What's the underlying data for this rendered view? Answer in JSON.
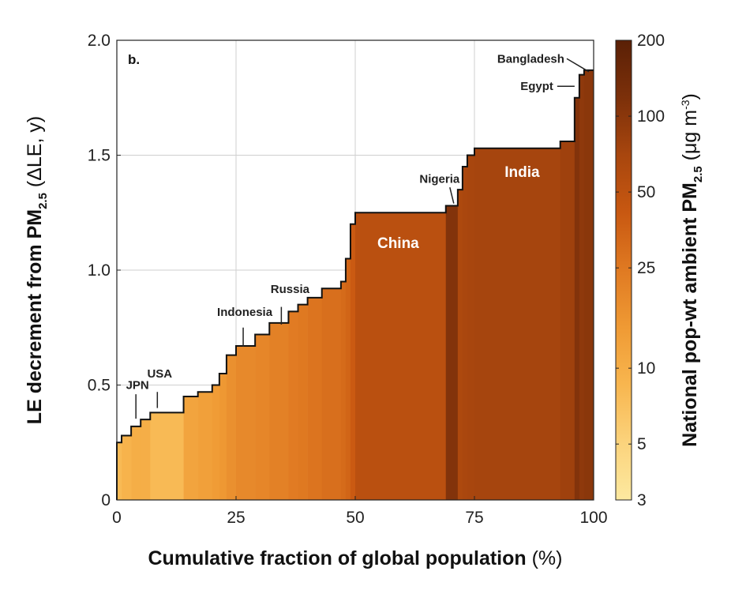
{
  "chart_data": {
    "type": "area",
    "panel_label": "b.",
    "xlabel_main": "Cumulative fraction of global population",
    "xlabel_unit": "(%)",
    "ylabel_main": "LE decrement from PM",
    "ylabel_sub": "2.5",
    "ylabel_unit": "(ΔLE, y)",
    "colorbar_label_main": "National pop-wt ambient PM",
    "colorbar_label_sub": "2.5",
    "colorbar_label_unit_pre": "(μg m",
    "colorbar_label_unit_sup": "-3",
    "colorbar_label_unit_post": ")",
    "xlim": [
      0,
      100
    ],
    "ylim": [
      0,
      2.0
    ],
    "x_ticks": [
      0,
      25,
      50,
      75,
      100
    ],
    "x_tick_labels": [
      "0",
      "25",
      "50",
      "75",
      "100"
    ],
    "y_ticks": [
      0,
      0.5,
      1.0,
      1.5,
      2.0
    ],
    "y_tick_labels": [
      "0",
      "0.5",
      "1.0",
      "1.5",
      "2.0"
    ],
    "grid": true,
    "colorbar": {
      "scale": "log",
      "range": [
        3,
        200
      ],
      "ticks": [
        3,
        5,
        10,
        25,
        50,
        100,
        200
      ],
      "tick_labels": [
        "3",
        "5",
        "10",
        "25",
        "50",
        "100",
        "200"
      ],
      "colors": [
        "#fde9a0",
        "#fbd37c",
        "#f8b64f",
        "#ef9a34",
        "#e07a22",
        "#c85811",
        "#a8460e",
        "#7c300a",
        "#5a2006"
      ]
    },
    "segments": [
      {
        "x0": 0,
        "x1": 1,
        "y": 0.25,
        "pm": 8
      },
      {
        "x0": 1,
        "x1": 3,
        "y": 0.28,
        "pm": 9
      },
      {
        "x0": 3,
        "x1": 5,
        "y": 0.32,
        "pm": 10
      },
      {
        "x0": 5,
        "x1": 7,
        "y": 0.35,
        "pm": 10
      },
      {
        "x0": 7,
        "x1": 14,
        "y": 0.38,
        "pm": 8
      },
      {
        "x0": 14,
        "x1": 17,
        "y": 0.45,
        "pm": 12
      },
      {
        "x0": 17,
        "x1": 20,
        "y": 0.47,
        "pm": 13
      },
      {
        "x0": 20,
        "x1": 21.5,
        "y": 0.5,
        "pm": 14
      },
      {
        "x0": 21.5,
        "x1": 23,
        "y": 0.55,
        "pm": 15
      },
      {
        "x0": 23,
        "x1": 25,
        "y": 0.63,
        "pm": 17
      },
      {
        "x0": 25,
        "x1": 29,
        "y": 0.67,
        "pm": 19
      },
      {
        "x0": 29,
        "x1": 32,
        "y": 0.72,
        "pm": 20
      },
      {
        "x0": 32,
        "x1": 36,
        "y": 0.77,
        "pm": 22
      },
      {
        "x0": 36,
        "x1": 38,
        "y": 0.82,
        "pm": 24
      },
      {
        "x0": 38,
        "x1": 40,
        "y": 0.85,
        "pm": 25
      },
      {
        "x0": 40,
        "x1": 43,
        "y": 0.88,
        "pm": 27
      },
      {
        "x0": 43,
        "x1": 47,
        "y": 0.92,
        "pm": 29
      },
      {
        "x0": 47,
        "x1": 48,
        "y": 0.95,
        "pm": 31
      },
      {
        "x0": 48,
        "x1": 49,
        "y": 1.05,
        "pm": 34
      },
      {
        "x0": 49,
        "x1": 50,
        "y": 1.2,
        "pm": 40
      },
      {
        "x0": 50,
        "x1": 69,
        "y": 1.25,
        "pm": 52
      },
      {
        "x0": 69,
        "x1": 71.5,
        "y": 1.28,
        "pm": 110
      },
      {
        "x0": 71.5,
        "x1": 72.5,
        "y": 1.35,
        "pm": 65
      },
      {
        "x0": 72.5,
        "x1": 73.5,
        "y": 1.45,
        "pm": 68
      },
      {
        "x0": 73.5,
        "x1": 75,
        "y": 1.5,
        "pm": 70
      },
      {
        "x0": 75,
        "x1": 93,
        "y": 1.53,
        "pm": 72
      },
      {
        "x0": 93,
        "x1": 96,
        "y": 1.56,
        "pm": 78
      },
      {
        "x0": 96,
        "x1": 97,
        "y": 1.75,
        "pm": 110
      },
      {
        "x0": 97,
        "x1": 98,
        "y": 1.85,
        "pm": 95
      },
      {
        "x0": 98,
        "x1": 100,
        "y": 1.87,
        "pm": 100
      }
    ],
    "annotations": [
      {
        "text": "JPN",
        "x": 4,
        "y": 0.34
      },
      {
        "text": "USA",
        "x": 8,
        "y": 0.4
      },
      {
        "text": "Indonesia",
        "x": 26.5,
        "y": 0.67
      },
      {
        "text": "Russia",
        "x": 34.5,
        "y": 0.77
      },
      {
        "text": "China",
        "x": 59,
        "y": 1.12
      },
      {
        "text": "Nigeria",
        "x": 70.5,
        "y": 1.29
      },
      {
        "text": "India",
        "x": 85,
        "y": 1.43
      },
      {
        "text": "Egypt",
        "x": 96.5,
        "y": 1.8
      },
      {
        "text": "Bangladesh",
        "x": 99,
        "y": 1.87
      }
    ]
  }
}
